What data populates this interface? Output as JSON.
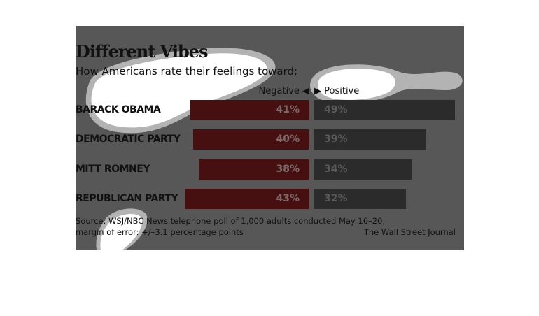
{
  "chart_data": {
    "type": "bar",
    "title": "Different Vibes",
    "subtitle": "How Americans rate their feelings toward:",
    "direction_labels": {
      "negative": "Negative ◀",
      "positive": "▶ Positive"
    },
    "categories": [
      "BARACK OBAMA",
      "DEMOCRATIC PARTY",
      "MITT ROMNEY",
      "REPUBLICAN PARTY"
    ],
    "series": [
      {
        "name": "Negative",
        "color": "#d42020",
        "values": [
          41,
          40,
          38,
          43
        ],
        "labels": [
          "41%",
          "40%",
          "38%",
          "43%"
        ]
      },
      {
        "name": "Positive",
        "color": "#333333",
        "values": [
          49,
          39,
          34,
          32
        ],
        "labels": [
          "49%",
          "39%",
          "34%",
          "32%"
        ]
      }
    ],
    "source": "Source: WSJ/NBC News telephone poll of 1,000 adults conducted May 16–20;",
    "margin": "margin of error: +/–3.1 percentage points",
    "credit": "The Wall Street Journal"
  }
}
